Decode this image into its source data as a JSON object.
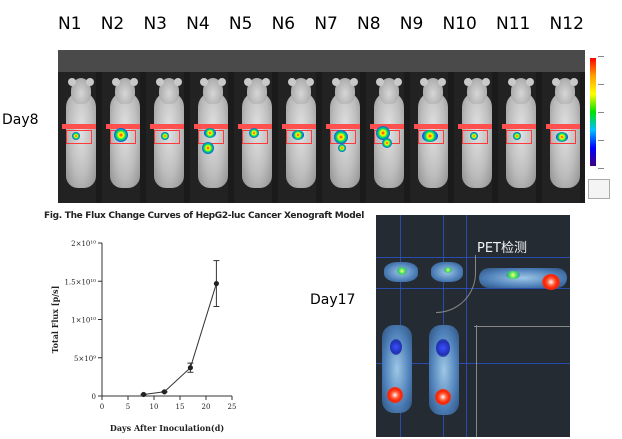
{
  "group_labels": [
    "N1",
    "N2",
    "N3",
    "N4",
    "N5",
    "N6",
    "N7",
    "N8",
    "N9",
    "N10",
    "N11",
    "N12"
  ],
  "day8_label": "Day8",
  "day17_label": "Day17",
  "pet_label": "PET检测",
  "chart_data": {
    "type": "line",
    "title": "Fig. The Flux Change Curves of HepG2-luc Cancer Xenograft Model",
    "xlabel": "Days After Inoculation(d)",
    "ylabel": "Total Flux [p/s]",
    "x": [
      8,
      12,
      17,
      22
    ],
    "y": [
      200000000.0,
      550000000.0,
      3700000000.0,
      14700000000.0
    ],
    "error": [
      20000000.0,
      50000000.0,
      600000000.0,
      3000000000.0
    ],
    "xlim": [
      0,
      25
    ],
    "ylim": [
      0,
      20000000000.0
    ],
    "xticks": [
      0,
      5,
      10,
      15,
      20,
      25
    ],
    "xtick_labels": [
      "0",
      "5",
      "10",
      "15",
      "20",
      "25"
    ],
    "yticks": [
      0,
      5000000000.0,
      10000000000.0,
      15000000000.0,
      20000000000.0
    ],
    "ytick_labels": [
      "0",
      "5×10⁹",
      "1×10¹⁰",
      "1.5×10¹⁰",
      "2×10¹⁰"
    ]
  }
}
